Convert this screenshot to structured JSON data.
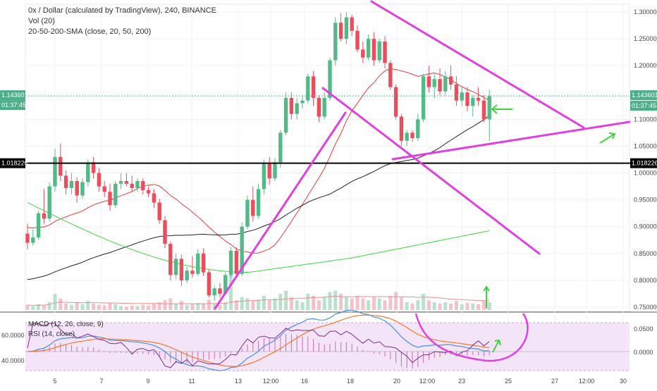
{
  "legend": {
    "title": "0x / Dollar (calculated by TradingView), 240, BINANCE",
    "volume": "Vol (20)",
    "sma": "20-50-200-SMA (close, 20, 50, 200)",
    "macd": "MACD (12, 26, close, 9)",
    "rsi": "RSI (14, close)"
  },
  "badges": {
    "last_price": "1.143601",
    "countdown": "01:37:45",
    "level_right": "1.018226",
    "level_left": "1.018226"
  },
  "colors": {
    "up": "#53b987",
    "down": "#eb4d5c",
    "sma20": "#e33b3b",
    "sma50": "#222222",
    "sma200": "#3fd33f",
    "drawing": "#e040e0",
    "arrow": "#3fd33f",
    "price_line": "#4caf8a",
    "rsi_band": "#f3e4f8",
    "macd_line": "#4a90d9",
    "signal_line": "#f07b2c",
    "rsi_line": "#7b2d8b"
  },
  "chart_data": {
    "type": "candlestick",
    "price_axis": {
      "ylim": [
        0.735,
        1.31
      ],
      "ticks": [
        "1.300000",
        "1.250000",
        "1.200000",
        "1.100000",
        "1.050000",
        "1.000000",
        "0.950000",
        "0.900000",
        "0.850000",
        "0.800000",
        "0.750000"
      ]
    },
    "time_axis": {
      "ticks": [
        "5",
        "7",
        "9",
        "11",
        "13",
        "12:00",
        "16",
        "18",
        "20",
        "12:00",
        "23",
        "25",
        "27",
        "12:00",
        "30"
      ]
    },
    "horizontal_level": 1.018226,
    "last_price": 1.143601,
    "candles": [
      [
        0.887,
        0.905,
        0.858,
        0.87
      ],
      [
        0.87,
        0.895,
        0.865,
        0.88
      ],
      [
        0.88,
        0.93,
        0.876,
        0.925
      ],
      [
        0.925,
        0.97,
        0.905,
        0.915
      ],
      [
        0.915,
        0.982,
        0.91,
        0.975
      ],
      [
        0.975,
        1.045,
        0.965,
        1.03
      ],
      [
        1.03,
        1.055,
        0.985,
        0.995
      ],
      [
        0.995,
        1.005,
        0.96,
        0.972
      ],
      [
        0.972,
        1.0,
        0.96,
        0.985
      ],
      [
        0.985,
        0.992,
        0.945,
        0.958
      ],
      [
        0.958,
        0.99,
        0.952,
        0.983
      ],
      [
        0.983,
        1.025,
        0.975,
        1.02
      ],
      [
        1.02,
        1.03,
        0.99,
        1.0
      ],
      [
        1.0,
        1.01,
        0.965,
        0.975
      ],
      [
        0.975,
        0.985,
        0.955,
        0.965
      ],
      [
        0.965,
        0.98,
        0.93,
        0.94
      ],
      [
        0.94,
        0.985,
        0.935,
        0.98
      ],
      [
        0.98,
        1.0,
        0.97,
        0.985
      ],
      [
        0.985,
        1.0,
        0.975,
        0.98
      ],
      [
        0.98,
        0.995,
        0.965,
        0.972
      ],
      [
        0.972,
        0.99,
        0.965,
        0.985
      ],
      [
        0.985,
        0.99,
        0.96,
        0.968
      ],
      [
        0.968,
        0.975,
        0.955,
        0.962
      ],
      [
        0.962,
        0.97,
        0.935,
        0.945
      ],
      [
        0.945,
        0.952,
        0.905,
        0.912
      ],
      [
        0.912,
        0.92,
        0.86,
        0.868
      ],
      [
        0.868,
        0.872,
        0.8,
        0.81
      ],
      [
        0.81,
        0.85,
        0.802,
        0.84
      ],
      [
        0.84,
        0.848,
        0.79,
        0.8
      ],
      [
        0.8,
        0.825,
        0.795,
        0.818
      ],
      [
        0.818,
        0.845,
        0.805,
        0.812
      ],
      [
        0.812,
        0.858,
        0.808,
        0.85
      ],
      [
        0.85,
        0.86,
        0.808,
        0.815
      ],
      [
        0.815,
        0.82,
        0.768,
        0.772
      ],
      [
        0.772,
        0.79,
        0.762,
        0.785
      ],
      [
        0.785,
        0.795,
        0.768,
        0.775
      ],
      [
        0.775,
        0.815,
        0.772,
        0.81
      ],
      [
        0.81,
        0.862,
        0.805,
        0.855
      ],
      [
        0.855,
        0.862,
        0.805,
        0.812
      ],
      [
        0.812,
        0.908,
        0.808,
        0.9
      ],
      [
        0.9,
        0.958,
        0.895,
        0.95
      ],
      [
        0.95,
        0.975,
        0.91,
        0.92
      ],
      [
        0.92,
        0.98,
        0.915,
        0.97
      ],
      [
        0.97,
        1.025,
        0.96,
        1.018
      ],
      [
        1.018,
        1.03,
        0.978,
        0.99
      ],
      [
        0.99,
        1.028,
        0.985,
        1.02
      ],
      [
        1.02,
        1.08,
        1.01,
        1.075
      ],
      [
        1.075,
        1.15,
        1.07,
        1.14
      ],
      [
        1.14,
        1.15,
        1.1,
        1.11
      ],
      [
        1.11,
        1.14,
        1.1,
        1.13
      ],
      [
        1.13,
        1.145,
        1.12,
        1.135
      ],
      [
        1.135,
        1.185,
        1.13,
        1.18
      ],
      [
        1.18,
        1.19,
        1.125,
        1.14
      ],
      [
        1.14,
        1.145,
        1.095,
        1.105
      ],
      [
        1.105,
        1.15,
        1.1,
        1.14
      ],
      [
        1.14,
        1.215,
        1.135,
        1.21
      ],
      [
        1.21,
        1.29,
        1.2,
        1.28
      ],
      [
        1.28,
        1.298,
        1.245,
        1.25
      ],
      [
        1.25,
        1.3,
        1.24,
        1.29
      ],
      [
        1.29,
        1.295,
        1.255,
        1.265
      ],
      [
        1.265,
        1.275,
        1.225,
        1.23
      ],
      [
        1.23,
        1.245,
        1.205,
        1.215
      ],
      [
        1.215,
        1.258,
        1.21,
        1.25
      ],
      [
        1.25,
        1.262,
        1.2,
        1.21
      ],
      [
        1.21,
        1.25,
        1.205,
        1.245
      ],
      [
        1.245,
        1.255,
        1.195,
        1.205
      ],
      [
        1.205,
        1.21,
        1.155,
        1.16
      ],
      [
        1.16,
        1.165,
        1.1,
        1.105
      ],
      [
        1.105,
        1.11,
        1.05,
        1.06
      ],
      [
        1.06,
        1.08,
        1.05,
        1.075
      ],
      [
        1.075,
        1.08,
        1.058,
        1.065
      ],
      [
        1.065,
        1.11,
        1.06,
        1.1
      ],
      [
        1.1,
        1.185,
        1.095,
        1.18
      ],
      [
        1.18,
        1.2,
        1.15,
        1.16
      ],
      [
        1.16,
        1.185,
        1.14,
        1.175
      ],
      [
        1.175,
        1.195,
        1.145,
        1.152
      ],
      [
        1.152,
        1.19,
        1.145,
        1.18
      ],
      [
        1.18,
        1.2,
        1.155,
        1.165
      ],
      [
        1.165,
        1.18,
        1.125,
        1.135
      ],
      [
        1.135,
        1.16,
        1.125,
        1.15
      ],
      [
        1.15,
        1.16,
        1.115,
        1.125
      ],
      [
        1.125,
        1.145,
        1.105,
        1.14
      ],
      [
        1.14,
        1.16,
        1.125,
        1.135
      ],
      [
        1.135,
        1.145,
        1.095,
        1.1
      ],
      [
        1.1,
        1.155,
        1.06,
        1.143
      ]
    ],
    "volume": [
      8,
      6,
      9,
      7,
      12,
      25,
      18,
      10,
      8,
      12,
      9,
      14,
      10,
      8,
      7,
      11,
      9,
      6,
      5,
      7,
      6,
      8,
      7,
      10,
      12,
      15,
      18,
      10,
      14,
      8,
      9,
      11,
      10,
      16,
      9,
      8,
      12,
      55,
      15,
      20,
      18,
      14,
      16,
      22,
      15,
      18,
      25,
      30,
      20,
      15,
      12,
      25,
      22,
      15,
      20,
      28,
      30,
      25,
      20,
      18,
      22,
      18,
      15,
      20,
      18,
      15,
      22,
      28,
      20,
      12,
      10,
      15,
      25,
      15,
      12,
      10,
      12,
      10,
      14,
      9,
      11,
      10,
      9,
      14,
      12
    ]
  }
}
